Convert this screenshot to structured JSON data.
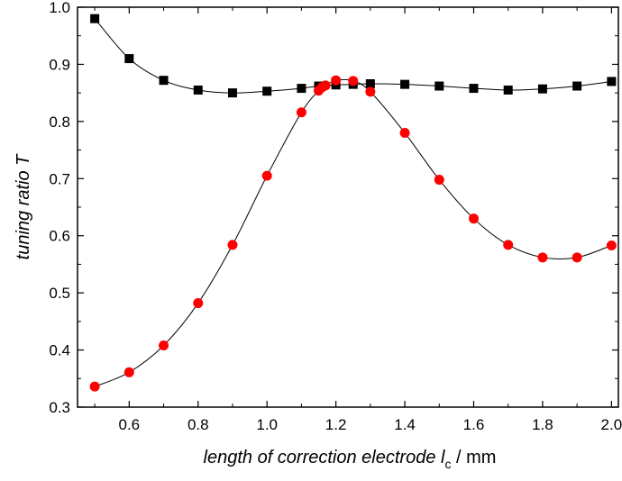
{
  "chart_data": {
    "type": "line",
    "xlabel_prefix": "length of correction electrode ",
    "xlabel_symbol": "l",
    "xlabel_subscript": "c",
    "xlabel_unit": " / mm",
    "ylabel_prefix": "tuning ratio ",
    "ylabel_symbol": "T",
    "xlim": [
      0.45,
      2.02
    ],
    "ylim": [
      0.3,
      1.0
    ],
    "xticks": [
      0.6,
      0.8,
      1.0,
      1.2,
      1.4,
      1.6,
      1.8,
      2.0
    ],
    "xtick_labels": [
      "0.6",
      "0.8",
      "1.0",
      "1.2",
      "1.4",
      "1.6",
      "1.8",
      "2.0"
    ],
    "yticks": [
      0.3,
      0.4,
      0.5,
      0.6,
      0.7,
      0.8,
      0.9,
      1.0
    ],
    "ytick_labels": [
      "0.3",
      "0.4",
      "0.5",
      "0.6",
      "0.7",
      "0.8",
      "0.9",
      "1.0"
    ],
    "grid": false,
    "series": [
      {
        "marker": "square",
        "color": "#000000",
        "x": [
          0.5,
          0.6,
          0.7,
          0.8,
          0.9,
          1.0,
          1.1,
          1.15,
          1.2,
          1.25,
          1.3,
          1.4,
          1.5,
          1.6,
          1.7,
          1.8,
          1.9,
          2.0
        ],
        "y": [
          0.98,
          0.91,
          0.872,
          0.855,
          0.85,
          0.853,
          0.858,
          0.862,
          0.864,
          0.865,
          0.866,
          0.865,
          0.862,
          0.858,
          0.855,
          0.857,
          0.862,
          0.87
        ]
      },
      {
        "marker": "circle",
        "color": "#ff0000",
        "x": [
          0.5,
          0.6,
          0.7,
          0.8,
          0.9,
          1.0,
          1.1,
          1.15,
          1.16,
          1.17,
          1.2,
          1.25,
          1.3,
          1.4,
          1.5,
          1.6,
          1.7,
          1.8,
          1.9,
          2.0
        ],
        "y": [
          0.336,
          0.361,
          0.408,
          0.482,
          0.584,
          0.705,
          0.816,
          0.854,
          0.86,
          0.863,
          0.872,
          0.871,
          0.852,
          0.78,
          0.698,
          0.63,
          0.584,
          0.562,
          0.562,
          0.583
        ]
      }
    ]
  }
}
